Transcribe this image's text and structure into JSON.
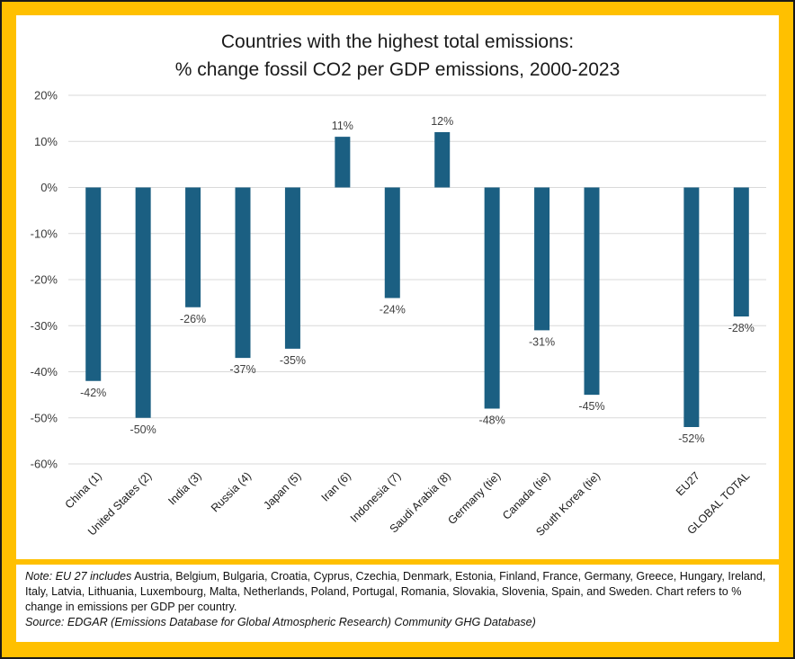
{
  "title_lines": [
    "Countries with the highest total emissions:",
    "% change fossil CO2 per GDP emissions, 2000-2023"
  ],
  "colors": {
    "bar": "#1b5f82",
    "frame": "#ffc000",
    "grid": "#d9d9d9"
  },
  "chart_data": {
    "type": "bar",
    "title": "Countries with the highest total emissions: % change fossil CO2 per GDP emissions, 2000-2023",
    "xlabel": "",
    "ylabel": "",
    "ylim": [
      -60,
      20
    ],
    "yticks": [
      20,
      10,
      0,
      -10,
      -20,
      -30,
      -40,
      -50,
      -60
    ],
    "ytick_labels": [
      "20%",
      "10%",
      "0%",
      "-10%",
      "-20%",
      "-30%",
      "-40%",
      "-50%",
      "-60%"
    ],
    "grid": true,
    "legend": "none",
    "categories": [
      "China (1)",
      "United States (2)",
      "India (3)",
      "Russia (4)",
      "Japan (5)",
      "Iran (6)",
      "Indonesia (7)",
      "Saudi Arabia (8)",
      "Germany (tie)",
      "Canada (tie)",
      "South Korea (tie)",
      "",
      "EU27",
      "GLOBAL TOTAL"
    ],
    "values": [
      -42,
      -50,
      -26,
      -37,
      -35,
      11,
      -24,
      12,
      -48,
      -31,
      -45,
      null,
      -52,
      -28
    ],
    "data_labels": [
      "-42%",
      "-50%",
      "-26%",
      "-37%",
      "-35%",
      "11%",
      "-24%",
      "12%",
      "-48%",
      "-31%",
      "-45%",
      "",
      "-52%",
      "-28%"
    ]
  },
  "note": {
    "label": "Note: EU 27 includes",
    "text": " Austria, Belgium, Bulgaria, Croatia, Cyprus, Czechia, Denmark, Estonia, Finland, France, Germany, Greece, Hungary, Ireland, Italy, Latvia, Lithuania, Luxembourg, Malta, Netherlands, Poland, Portugal, Romania, Slovakia, Slovenia, Spain, and Sweden. Chart refers to % change in emissions per GDP per country.",
    "source": "Source:  EDGAR (Emissions Database for Global Atmospheric Research) Community GHG Database)"
  }
}
